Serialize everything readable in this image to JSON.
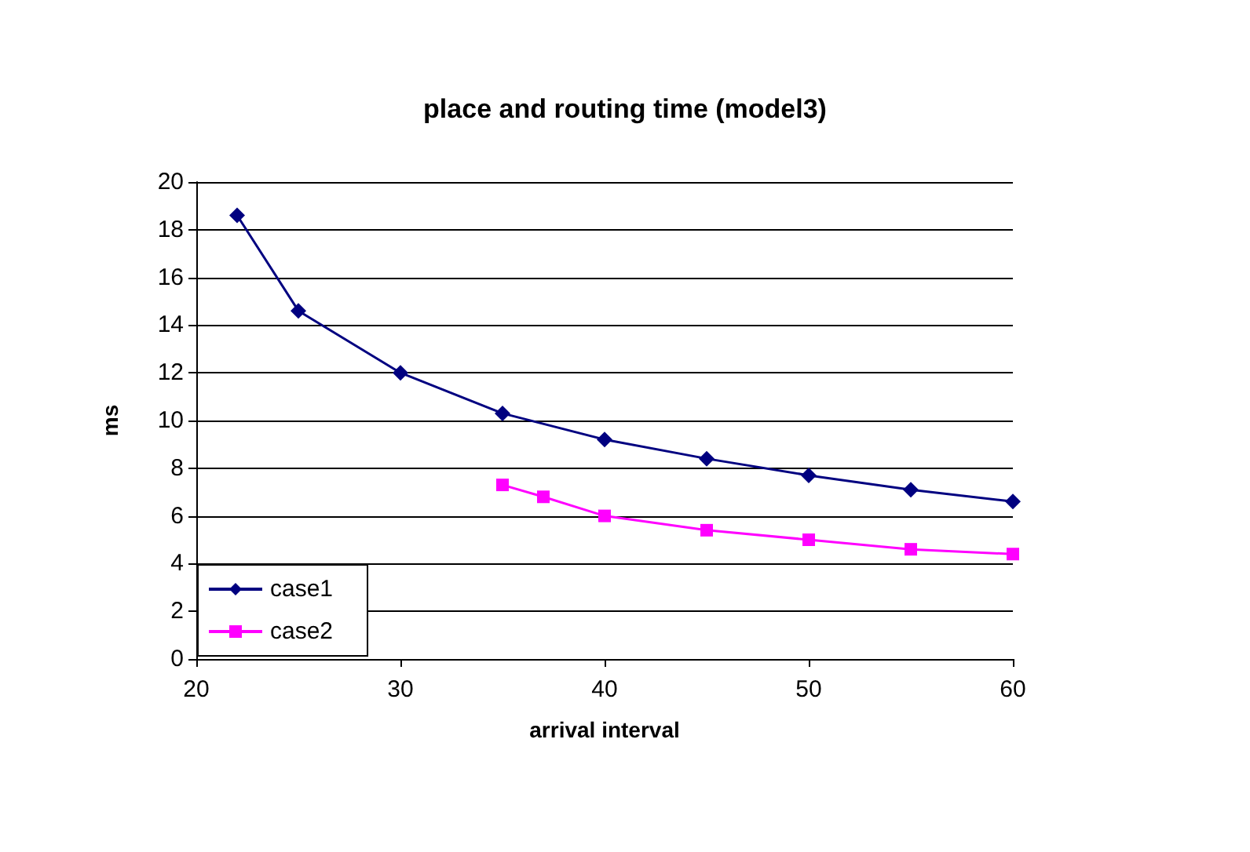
{
  "chart_data": {
    "type": "line",
    "title": "place and routing time (model3)",
    "xlabel": "arrival interval",
    "ylabel": "ms",
    "xlim": [
      20,
      60
    ],
    "xticks": [
      20,
      30,
      40,
      50,
      60
    ],
    "ylim": [
      0,
      20
    ],
    "yticks": [
      0,
      2,
      4,
      6,
      8,
      10,
      12,
      14,
      16,
      18,
      20
    ],
    "grid": "y",
    "legend": "bottom left",
    "line_style": "solid",
    "series": [
      {
        "name": "case1",
        "color": "#000080",
        "marker": "diamond",
        "x": [
          22,
          25,
          30,
          35,
          40,
          45,
          50,
          55,
          60
        ],
        "values": [
          18.6,
          14.6,
          12.0,
          10.3,
          9.2,
          8.4,
          7.7,
          7.1,
          6.6
        ]
      },
      {
        "name": "case2",
        "color": "#ff00ff",
        "marker": "square",
        "x": [
          35,
          37,
          40,
          45,
          50,
          55,
          60
        ],
        "values": [
          7.3,
          6.8,
          6.0,
          5.4,
          5.0,
          4.6,
          4.4
        ]
      }
    ]
  }
}
